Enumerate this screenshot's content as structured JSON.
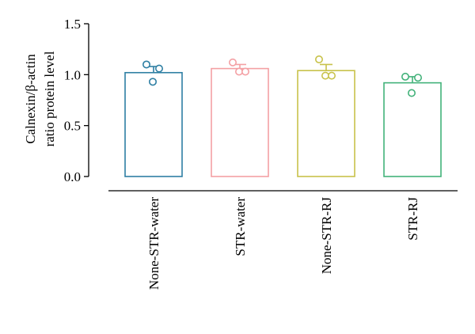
{
  "chart_data": {
    "type": "bar",
    "categories": [
      "None-STR-water",
      "STR-water",
      "None-STR-RJ",
      "STR-RJ"
    ],
    "values": [
      1.02,
      1.06,
      1.04,
      0.92
    ],
    "error_upper": [
      1.08,
      1.1,
      1.1,
      0.98
    ],
    "points": [
      [
        1.1,
        0.93,
        1.06
      ],
      [
        1.12,
        1.03,
        1.03
      ],
      [
        1.15,
        0.99,
        0.99
      ],
      [
        0.98,
        0.82,
        0.97
      ]
    ],
    "colors": [
      "#2e7fa3",
      "#f4a0a4",
      "#c8c24a",
      "#43b27a"
    ],
    "ylabel_lines": [
      "Calnexin/β-actin",
      "ratio protein level"
    ],
    "yticks": [
      "0.0",
      "0.5",
      "1.0",
      "1.5"
    ],
    "ylim": [
      0,
      1.5
    ],
    "grid": false
  }
}
